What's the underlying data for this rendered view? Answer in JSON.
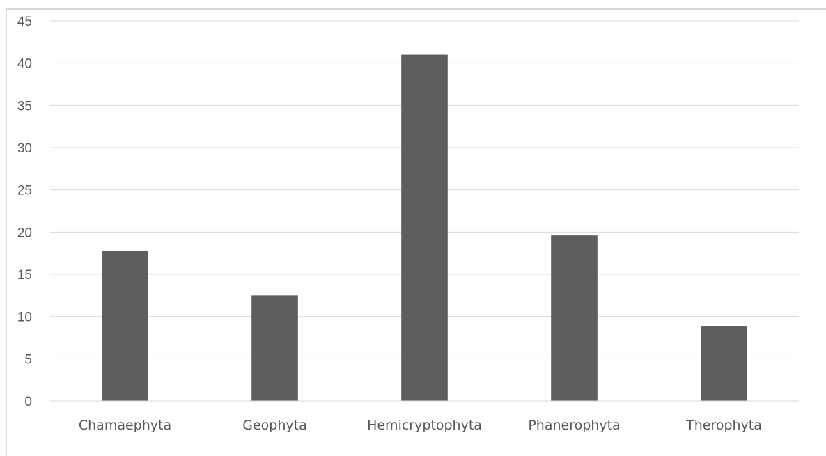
{
  "chart_data": {
    "type": "bar",
    "categories": [
      "Chamaephyta",
      "Geophyta",
      "Hemicryptophyta",
      "Phanerophyta",
      "Therophyta"
    ],
    "values": [
      17.8,
      12.5,
      41,
      19.6,
      8.9
    ],
    "ylim": [
      0,
      45
    ],
    "yticks": [
      "0",
      "5",
      "10",
      "15",
      "20",
      "25",
      "30",
      "35",
      "40",
      "45"
    ],
    "title": "",
    "xlabel": "",
    "ylabel": "",
    "grid": true,
    "legend": "none",
    "bar_color": "#5e5e5e",
    "grid_color": "#d9d9d9"
  }
}
